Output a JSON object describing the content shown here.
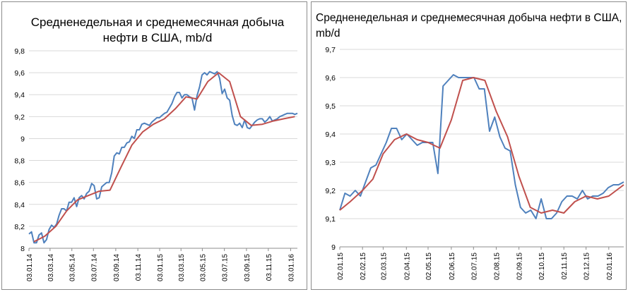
{
  "chart_data": [
    {
      "type": "line",
      "title": "Средненедельная и среднемесячная добыча нефти в США, mb/d",
      "xlabel": "",
      "ylabel": "",
      "ylim": [
        8,
        9.8
      ],
      "yticks": [
        "8",
        "8,2",
        "8,4",
        "8,6",
        "8,8",
        "9",
        "9,2",
        "9,4",
        "9,6",
        "9,8"
      ],
      "ytick_values": [
        8,
        8.2,
        8.4,
        8.6,
        8.8,
        9,
        9.2,
        9.4,
        9.6,
        9.8
      ],
      "xlim": [
        0,
        107
      ],
      "xticks": [
        "03.01.14",
        "03.03.14",
        "03.05.14",
        "03.07.14",
        "03.09.14",
        "03.11.14",
        "03.01.15",
        "03.03.15",
        "03.05.15",
        "03.07.15",
        "03.09.15",
        "03.11.15",
        "03.01.16"
      ],
      "xtick_weeks": [
        0,
        8.4,
        17.1,
        25.7,
        34.6,
        43.4,
        52.1,
        60.6,
        69.1,
        77.9,
        86.7,
        95.4,
        104.3
      ],
      "grid": "horizontal",
      "legend": "none",
      "series": [
        {
          "color": "#4f81bd",
          "x": [
            0,
            1,
            2,
            3,
            4,
            5,
            6,
            7,
            8,
            9,
            10,
            11,
            12,
            13,
            14,
            15,
            16,
            17,
            18,
            19,
            20,
            21,
            22,
            23,
            24,
            25,
            26,
            27,
            28,
            29,
            30,
            31,
            32,
            33,
            34,
            35,
            36,
            37,
            38,
            39,
            40,
            41,
            42,
            43,
            44,
            45,
            46,
            47,
            48,
            49,
            50,
            51,
            52,
            53,
            54,
            55,
            56,
            57,
            58,
            59,
            60,
            61,
            62,
            63,
            64,
            65,
            66,
            67,
            68,
            69,
            70,
            71,
            72,
            73,
            74,
            75,
            76,
            77,
            78,
            79,
            80,
            81,
            82,
            83,
            84,
            85,
            86,
            87,
            88,
            89,
            90,
            91,
            92,
            93,
            94,
            95,
            96,
            97,
            98,
            99,
            100,
            101,
            102,
            103,
            104,
            105,
            106,
            107
          ],
          "values": [
            8.13,
            8.15,
            8.05,
            8.05,
            8.12,
            8.14,
            8.05,
            8.08,
            8.17,
            8.21,
            8.19,
            8.22,
            8.3,
            8.36,
            8.36,
            8.34,
            8.42,
            8.42,
            8.46,
            8.38,
            8.46,
            8.48,
            8.45,
            8.5,
            8.52,
            8.59,
            8.57,
            8.45,
            8.46,
            8.56,
            8.58,
            8.6,
            8.6,
            8.69,
            8.84,
            8.87,
            8.86,
            8.92,
            8.92,
            8.96,
            8.97,
            9.02,
            9.0,
            9.08,
            9.08,
            9.13,
            9.14,
            9.13,
            9.12,
            9.15,
            9.17,
            9.19,
            9.19,
            9.21,
            9.23,
            9.24,
            9.28,
            9.32,
            9.38,
            9.42,
            9.42,
            9.37,
            9.4,
            9.4,
            9.38,
            9.37,
            9.26,
            9.39,
            9.47,
            9.58,
            9.6,
            9.58,
            9.61,
            9.6,
            9.59,
            9.61,
            9.55,
            9.41,
            9.45,
            9.37,
            9.35,
            9.21,
            9.13,
            9.12,
            9.14,
            9.1,
            9.17,
            9.1,
            9.09,
            9.12,
            9.15,
            9.17,
            9.18,
            9.18,
            9.15,
            9.17,
            9.2,
            9.16,
            9.17,
            9.18,
            9.2,
            9.21,
            9.22,
            9.23,
            9.23,
            9.23,
            9.22,
            9.23
          ]
        },
        {
          "color": "#c0504d",
          "x": [
            2,
            6.3,
            10.7,
            15,
            19.3,
            23.6,
            28,
            32.3,
            36.7,
            41,
            45.3,
            49.6,
            54,
            58.3,
            62.6,
            67,
            71.3,
            75.6,
            80,
            84.3,
            88.6,
            93,
            97.3,
            101.6,
            106
          ],
          "values": [
            8.06,
            8.11,
            8.2,
            8.34,
            8.44,
            8.48,
            8.52,
            8.53,
            8.74,
            8.94,
            9.06,
            9.13,
            9.18,
            9.27,
            9.38,
            9.36,
            9.52,
            9.6,
            9.52,
            9.2,
            9.12,
            9.13,
            9.16,
            9.18,
            9.2
          ]
        }
      ]
    },
    {
      "type": "line",
      "title": "Средненедельная и среднемесячная добыча нефти в США, mb/d",
      "xlabel": "",
      "ylabel": "",
      "ylim": [
        9,
        9.7
      ],
      "yticks": [
        "9",
        "9,1",
        "9,2",
        "9,3",
        "9,4",
        "9,5",
        "9,6",
        "9,7"
      ],
      "ytick_values": [
        9,
        9.1,
        9.2,
        9.3,
        9.4,
        9.5,
        9.6,
        9.7
      ],
      "xlim": [
        0,
        55
      ],
      "xticks": [
        "02.01.15",
        "02.02.15",
        "02.03.15",
        "02.04.15",
        "02.05.15",
        "02.06.15",
        "02.07.15",
        "02.08.15",
        "02.09.15",
        "02.10.15",
        "02.11.15",
        "02.12.15",
        "02.01.16"
      ],
      "xtick_weeks": [
        0,
        4.4,
        8.4,
        12.9,
        17.1,
        21.6,
        25.9,
        30.3,
        34.7,
        39,
        43.4,
        47.7,
        52.1
      ],
      "grid": "horizontal",
      "legend": "none",
      "series": [
        {
          "color": "#4f81bd",
          "x": [
            0,
            1,
            2,
            3,
            4,
            5,
            6,
            7,
            8,
            9,
            10,
            11,
            12,
            13,
            14,
            15,
            16,
            17,
            18,
            19,
            20,
            21,
            22,
            23,
            24,
            25,
            26,
            27,
            28,
            29,
            30,
            31,
            32,
            33,
            34,
            35,
            36,
            37,
            38,
            39,
            40,
            41,
            42,
            43,
            44,
            45,
            46,
            47,
            48,
            49,
            50,
            51,
            52,
            53,
            54,
            55
          ],
          "values": [
            9.13,
            9.19,
            9.18,
            9.2,
            9.18,
            9.23,
            9.28,
            9.29,
            9.33,
            9.37,
            9.42,
            9.42,
            9.38,
            9.4,
            9.38,
            9.36,
            9.37,
            9.37,
            9.37,
            9.26,
            9.57,
            9.59,
            9.61,
            9.6,
            9.6,
            9.6,
            9.6,
            9.56,
            9.56,
            9.41,
            9.46,
            9.39,
            9.35,
            9.34,
            9.22,
            9.14,
            9.12,
            9.13,
            9.1,
            9.17,
            9.1,
            9.1,
            9.12,
            9.16,
            9.18,
            9.18,
            9.17,
            9.2,
            9.17,
            9.18,
            9.18,
            9.19,
            9.21,
            9.22,
            9.22,
            9.23
          ]
        },
        {
          "color": "#c0504d",
          "x": [
            0,
            2,
            4.4,
            6.4,
            8.4,
            10.6,
            12.9,
            15,
            17.1,
            19.4,
            21.6,
            23.8,
            25.9,
            28.1,
            30.3,
            32.5,
            34.7,
            36.9,
            39,
            41.2,
            43.4,
            45.5,
            47.7,
            49.9,
            52.1,
            55
          ],
          "values": [
            9.13,
            9.16,
            9.2,
            9.24,
            9.33,
            9.38,
            9.4,
            9.38,
            9.37,
            9.35,
            9.45,
            9.59,
            9.6,
            9.59,
            9.48,
            9.39,
            9.25,
            9.14,
            9.12,
            9.13,
            9.12,
            9.16,
            9.18,
            9.17,
            9.18,
            9.22
          ]
        }
      ]
    }
  ]
}
